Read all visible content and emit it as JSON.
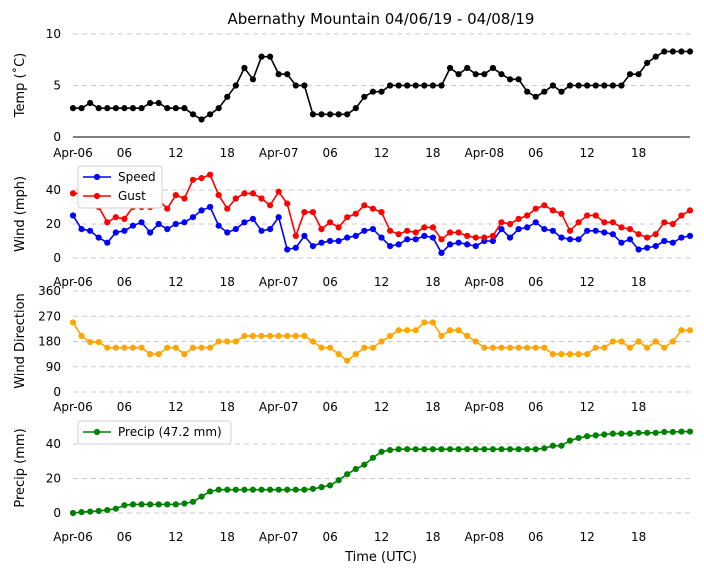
{
  "chart_data": {
    "title": "Abernathy Mountain 04/06/19 - 04/08/19",
    "xlabel": "Time (UTC)",
    "x_ticks": [
      "Apr-06",
      "06",
      "12",
      "18",
      "Apr-07",
      "06",
      "12",
      "18",
      "Apr-08",
      "06",
      "12",
      "18"
    ],
    "x_range_hours": [
      0,
      72
    ],
    "x_step_hours": 1,
    "colors": {
      "temp": "#000000",
      "speed": "#0000ff",
      "gust": "#ff0000",
      "direction": "#ffa500",
      "precip": "#008000"
    },
    "panels": [
      {
        "name": "temp",
        "type": "line",
        "ylabel": "Temp (˚C)",
        "ylim": [
          0,
          10
        ],
        "yticks": [
          "0",
          "5",
          "10"
        ],
        "series": [
          {
            "name": "Temp",
            "color": "#000000",
            "values": [
              2.8,
              2.8,
              3.3,
              2.8,
              2.8,
              2.8,
              2.8,
              2.8,
              2.8,
              3.3,
              3.3,
              2.8,
              2.8,
              2.8,
              2.2,
              1.7,
              2.2,
              2.8,
              3.9,
              5.0,
              6.7,
              5.6,
              7.8,
              7.8,
              6.1,
              6.1,
              5.0,
              5.0,
              2.2,
              2.2,
              2.2,
              2.2,
              2.2,
              2.8,
              3.9,
              4.4,
              4.4,
              5.0,
              5.0,
              5.0,
              5.0,
              5.0,
              5.0,
              5.0,
              6.7,
              6.1,
              6.7,
              6.1,
              6.1,
              6.7,
              6.1,
              5.6,
              5.6,
              4.4,
              3.9,
              4.4,
              5.0,
              4.4,
              5.0,
              5.0,
              5.0,
              5.0,
              5.0,
              5.0,
              5.0,
              6.1,
              6.1,
              7.2,
              7.8,
              8.3,
              8.3,
              8.3,
              8.3
            ]
          }
        ]
      },
      {
        "name": "wind",
        "type": "line",
        "ylabel": "Wind (mph)",
        "ylim": [
          0,
          55
        ],
        "yticks": [
          "0",
          "20",
          "40"
        ],
        "series": [
          {
            "name": "Speed",
            "color": "#0000ff",
            "values": [
              25,
              17,
              16,
              12,
              9,
              15,
              16,
              19,
              21,
              15,
              20,
              17,
              20,
              21,
              24,
              28,
              30,
              19,
              15,
              17,
              21,
              23,
              16,
              17,
              24,
              5,
              6,
              13,
              7,
              9,
              10,
              10,
              12,
              13,
              16,
              17,
              12,
              7,
              8,
              11,
              11,
              13,
              12,
              3,
              8,
              9,
              8,
              7,
              10,
              10,
              17,
              12,
              17,
              18,
              21,
              17,
              16,
              12,
              11,
              11,
              16,
              16,
              15,
              14,
              9,
              11,
              5,
              6,
              7,
              10,
              9,
              12,
              13
            ]
          },
          {
            "name": "Gust",
            "color": "#ff0000",
            "values": [
              38,
              38,
              33,
              30,
              21,
              24,
              23,
              30,
              30,
              30,
              34,
              29,
              37,
              35,
              46,
              47,
              49,
              37,
              29,
              35,
              38,
              38,
              35,
              31,
              39,
              32,
              13,
              27,
              27,
              17,
              21,
              18,
              24,
              26,
              31,
              29,
              27,
              16,
              14,
              16,
              15,
              18,
              18,
              11,
              15,
              15,
              13,
              12,
              12,
              13,
              21,
              20,
              23,
              25,
              29,
              31,
              28,
              26,
              16,
              21,
              25,
              25,
              21,
              21,
              18,
              17,
              14,
              12,
              14,
              21,
              20,
              25,
              28
            ]
          }
        ]
      },
      {
        "name": "direction",
        "type": "line",
        "ylabel": "Wind Direction",
        "ylim": [
          0,
          360
        ],
        "yticks": [
          "0",
          "90",
          "180",
          "270",
          "360"
        ],
        "series": [
          {
            "name": "Direction",
            "color": "#ffa500",
            "values": [
              248,
              200,
              178,
              178,
              158,
              158,
              158,
              158,
              158,
              135,
              135,
              158,
              158,
              135,
              158,
              158,
              158,
              180,
              180,
              180,
              200,
              200,
              200,
              200,
              200,
              200,
              200,
              200,
              180,
              158,
              158,
              135,
              112,
              135,
              158,
              158,
              180,
              200,
              220,
              220,
              220,
              248,
              248,
              200,
              220,
              220,
              200,
              180,
              158,
              158,
              158,
              158,
              158,
              158,
              158,
              158,
              135,
              135,
              135,
              135,
              135,
              158,
              158,
              180,
              180,
              158,
              180,
              158,
              180,
              158,
              180,
              220,
              220
            ]
          }
        ]
      },
      {
        "name": "precip",
        "type": "line",
        "ylabel": "Precip (mm)",
        "ylim": [
          -2,
          55
        ],
        "yticks": [
          "0",
          "20",
          "40"
        ],
        "series": [
          {
            "name": "Precip (47.2 mm)",
            "color": "#008000",
            "values": [
              0,
              0.5,
              0.8,
              1.2,
              1.7,
              2.5,
              4.5,
              5.0,
              5.0,
              5.0,
              5.0,
              5.0,
              5.0,
              5.5,
              6.5,
              9.5,
              12.5,
              13.5,
              13.5,
              13.5,
              13.5,
              13.5,
              13.5,
              13.5,
              13.5,
              13.5,
              13.5,
              13.5,
              14.0,
              15.0,
              16.0,
              19.0,
              22.5,
              25.5,
              28.0,
              32.0,
              35.5,
              36.5,
              37.0,
              37.0,
              37.0,
              37.0,
              37.0,
              37.0,
              37.0,
              37.0,
              37.0,
              37.0,
              37.0,
              37.0,
              37.0,
              37.0,
              37.0,
              37.0,
              37.0,
              37.5,
              39.0,
              39.0,
              42.0,
              43.5,
              44.5,
              45.0,
              45.5,
              46.0,
              46.0,
              46.0,
              46.5,
              46.5,
              46.5,
              47.0,
              47.0,
              47.2,
              47.2
            ]
          }
        ]
      }
    ]
  }
}
